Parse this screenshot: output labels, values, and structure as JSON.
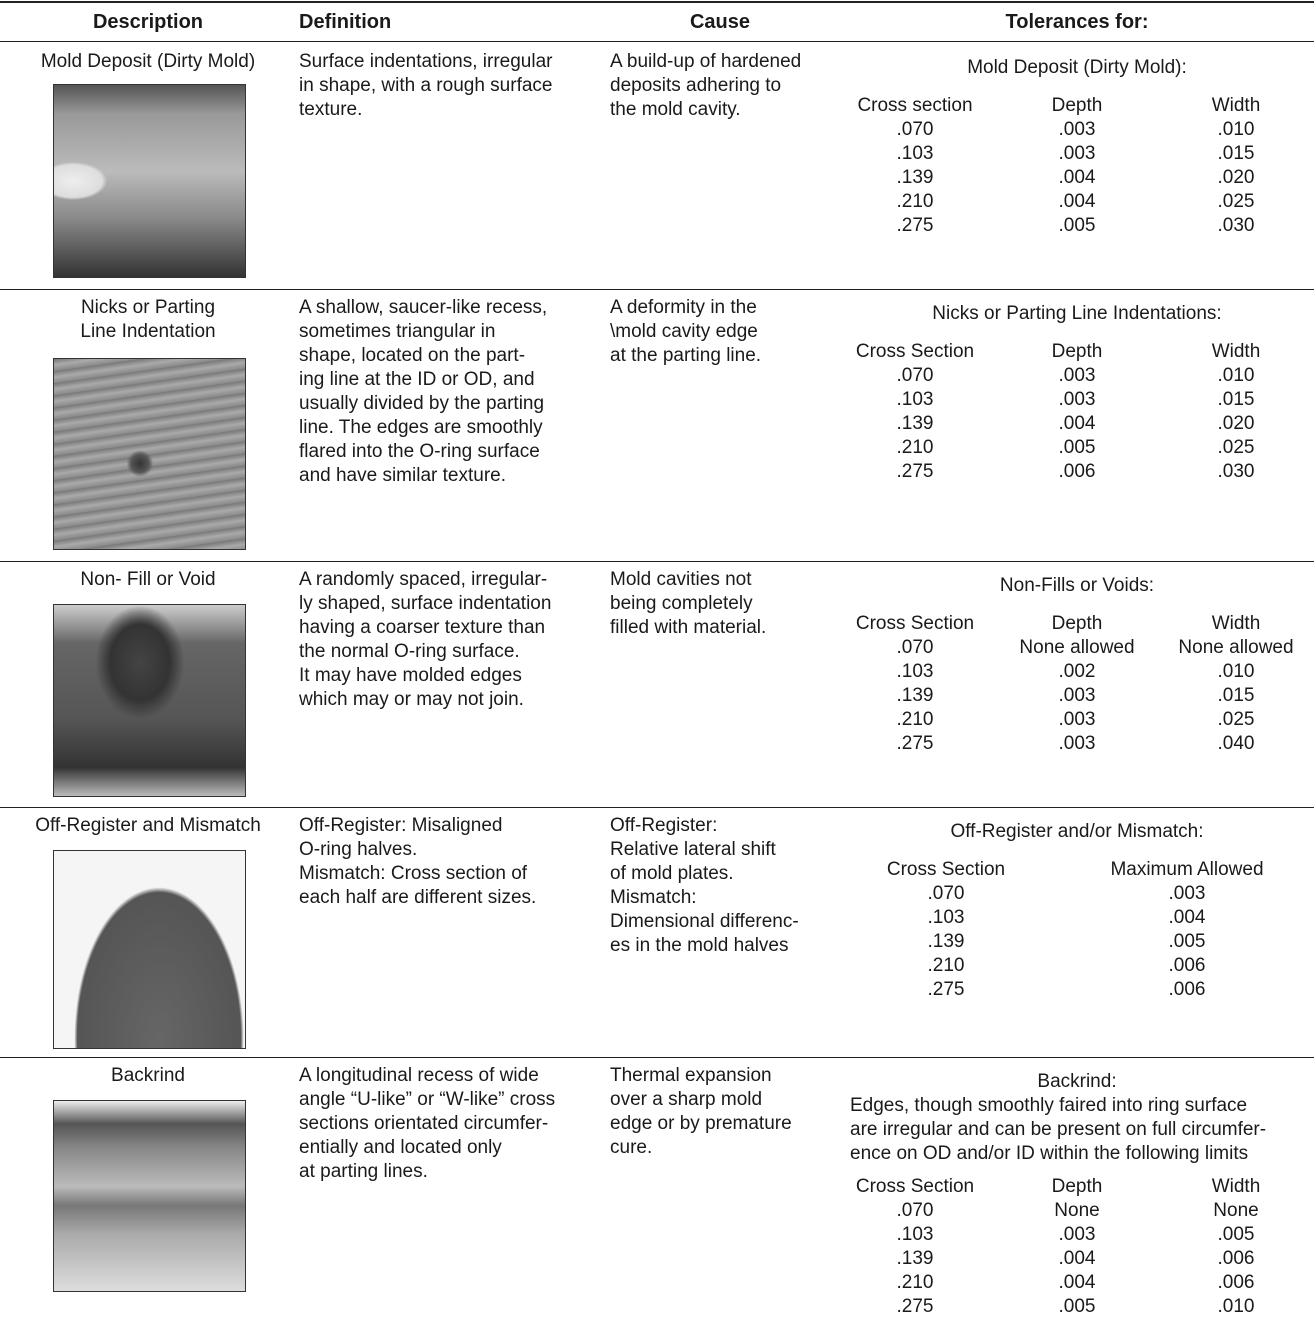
{
  "table": {
    "headers": [
      "Description",
      "Definition",
      "Cause",
      "Tolerances for:"
    ],
    "rows": [
      {
        "description": [
          "Mold Deposit (Dirty Mold)"
        ],
        "definition": [
          "Surface indentations, irregular",
          "in shape, with a rough surface",
          "texture."
        ],
        "cause": [
          "A build-up of hardened",
          "deposits adhering to",
          "the mold cavity."
        ],
        "tolerances": {
          "title": "Mold Deposit (Dirty Mold):",
          "columns": [
            "Cross section",
            "Depth",
            "Width"
          ],
          "rows": [
            [
              ".070",
              ".003",
              ".010"
            ],
            [
              ".103",
              ".003",
              ".015"
            ],
            [
              ".139",
              ".004",
              ".020"
            ],
            [
              ".210",
              ".004",
              ".025"
            ],
            [
              ".275",
              ".005",
              ".030"
            ]
          ]
        }
      },
      {
        "description": [
          "Nicks or Parting",
          "Line Indentation"
        ],
        "definition": [
          "A shallow, saucer-like recess,",
          "sometimes triangular in",
          "shape, located on the part-",
          "ing line at the ID or OD, and",
          "usually divided by the parting",
          "line. The edges are smoothly",
          "flared into the O-ring surface",
          "and have similar texture."
        ],
        "cause": [
          "A deformity in the",
          "\\mold cavity edge",
          "at the parting line."
        ],
        "tolerances": {
          "title": "Nicks or Parting Line Indentations:",
          "columns": [
            "Cross Section",
            "Depth",
            "Width"
          ],
          "rows": [
            [
              ".070",
              ".003",
              ".010"
            ],
            [
              ".103",
              ".003",
              ".015"
            ],
            [
              ".139",
              ".004",
              ".020"
            ],
            [
              ".210",
              ".005",
              ".025"
            ],
            [
              ".275",
              ".006",
              ".030"
            ]
          ]
        }
      },
      {
        "description": [
          "Non- Fill or Void"
        ],
        "definition": [
          "A randomly spaced, irregular-",
          "ly shaped, surface indentation",
          "having a coarser texture than",
          "the normal O-ring surface.",
          "It may have molded edges",
          "which may or may not join."
        ],
        "cause": [
          "Mold cavities not",
          "being completely",
          "filled with material."
        ],
        "tolerances": {
          "title": "Non-Fills or Voids:",
          "columns": [
            "Cross Section",
            "Depth",
            "Width"
          ],
          "rows": [
            [
              ".070",
              "None allowed",
              "None allowed"
            ],
            [
              ".103",
              ".002",
              ".010"
            ],
            [
              ".139",
              ".003",
              ".015"
            ],
            [
              ".210",
              ".003",
              ".025"
            ],
            [
              ".275",
              ".003",
              ".040"
            ]
          ]
        }
      },
      {
        "description": [
          "Off-Register and Mismatch"
        ],
        "definition": [
          "Off-Register: Misaligned",
          "O-ring halves.",
          "Mismatch: Cross section of",
          "each half are different sizes."
        ],
        "cause": [
          "Off-Register:",
          "Relative lateral shift",
          "of mold plates.",
          "Mismatch:",
          "Dimensional differenc-",
          "es in the mold halves"
        ],
        "tolerances": {
          "title": "Off-Register and/or Mismatch:",
          "columns": [
            "Cross Section",
            "Maximum Allowed"
          ],
          "rows": [
            [
              ".070",
              ".003"
            ],
            [
              ".103",
              ".004"
            ],
            [
              ".139",
              ".005"
            ],
            [
              ".210",
              ".006"
            ],
            [
              ".275",
              ".006"
            ]
          ]
        }
      },
      {
        "description": [
          "Backrind"
        ],
        "definition": [
          "A longitudinal recess of wide",
          "angle “U-like” or “W-like” cross",
          "sections orientated circumfer-",
          "entially and located only",
          "at parting lines."
        ],
        "cause": [
          "Thermal expansion",
          "over a sharp mold",
          "edge or by premature",
          "cure."
        ],
        "tolerances": {
          "title": "Backrind:",
          "note": [
            "Edges, though smoothly faired into ring surface",
            "are irregular and can be present on full circumfer-",
            "ence on OD and/or ID within the following limits"
          ],
          "columns": [
            "Cross Section",
            "Depth",
            "Width"
          ],
          "rows": [
            [
              ".070",
              "None",
              "None"
            ],
            [
              ".103",
              ".003",
              ".005"
            ],
            [
              ".139",
              ".004",
              ".006"
            ],
            [
              ".210",
              ".004",
              ".006"
            ],
            [
              ".275",
              ".005",
              ".010"
            ]
          ]
        }
      }
    ]
  }
}
